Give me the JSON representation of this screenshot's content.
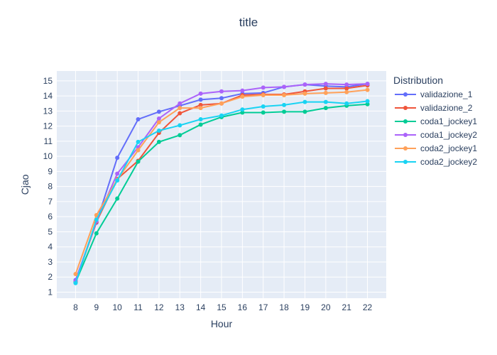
{
  "chart_data": {
    "type": "line",
    "title": "title",
    "xlabel": "Hour",
    "ylabel": "Cjao",
    "x": [
      8,
      9,
      10,
      11,
      12,
      13,
      14,
      15,
      16,
      17,
      18,
      19,
      20,
      21,
      22
    ],
    "xlim": [
      7.1,
      22.9
    ],
    "ylim": [
      0.6,
      15.65
    ],
    "yticks": [
      1,
      2,
      3,
      4,
      5,
      6,
      7,
      8,
      9,
      10,
      11,
      12,
      13,
      14,
      15
    ],
    "grid": true,
    "legend_title": "Distribution",
    "legend_position": "right",
    "series": [
      {
        "name": "validazione_1",
        "color": "#636efa",
        "values": [
          1.8,
          5.6,
          9.9,
          12.45,
          12.95,
          13.35,
          13.75,
          13.85,
          14.15,
          14.2,
          14.6,
          14.75,
          14.65,
          14.6,
          14.8
        ]
      },
      {
        "name": "validazione_2",
        "color": "#ef553b",
        "values": [
          1.7,
          5.65,
          8.5,
          9.7,
          11.55,
          12.85,
          13.4,
          13.5,
          14.05,
          14.1,
          14.1,
          14.3,
          14.5,
          14.5,
          14.7
        ]
      },
      {
        "name": "coda1_jockey1",
        "color": "#00cc96",
        "values": [
          1.65,
          4.9,
          7.2,
          9.65,
          10.95,
          11.4,
          12.1,
          12.6,
          12.9,
          12.9,
          12.95,
          12.95,
          13.2,
          13.35,
          13.45
        ]
      },
      {
        "name": "coda1_jockey2",
        "color": "#ab63fa",
        "values": [
          1.75,
          5.7,
          8.85,
          10.6,
          12.5,
          13.5,
          14.15,
          14.3,
          14.35,
          14.55,
          14.6,
          14.75,
          14.8,
          14.75,
          14.8
        ]
      },
      {
        "name": "coda2_jockey1",
        "color": "#ffa15a",
        "values": [
          2.2,
          6.1,
          8.45,
          10.4,
          12.25,
          13.2,
          13.2,
          13.5,
          13.95,
          14.05,
          14.05,
          14.15,
          14.2,
          14.25,
          14.4
        ]
      },
      {
        "name": "coda2_jockey2",
        "color": "#19d3f3",
        "values": [
          1.6,
          5.8,
          8.4,
          10.95,
          11.7,
          12.05,
          12.45,
          12.7,
          13.1,
          13.3,
          13.4,
          13.6,
          13.6,
          13.5,
          13.65
        ]
      }
    ]
  }
}
